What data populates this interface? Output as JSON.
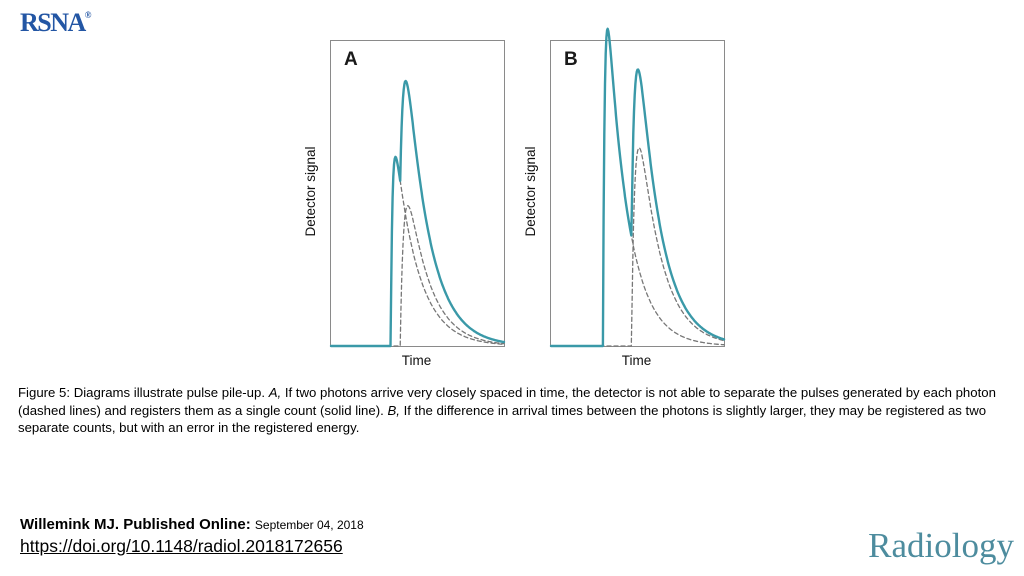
{
  "header": {
    "rsna_logo": "RSNA",
    "rsna_registered": "®"
  },
  "colors": {
    "signal_teal": "#3a99a8",
    "dashed_gray": "#777777",
    "rsna_blue": "#2356a4",
    "journal_teal": "#4d8c9e",
    "box_border": "#8a8a8a"
  },
  "chart_data": [
    {
      "type": "line",
      "panel_label": "A",
      "xlabel": "Time",
      "ylabel": "Detector signal",
      "x_range": [
        0,
        100
      ],
      "y_range": [
        0,
        110
      ],
      "grid": false,
      "legend": "none",
      "note": "Two photons arriving very closely in time; pulses merge into a single registered count",
      "series": [
        {
          "name": "photon-pulse-1",
          "style": "dashed",
          "color": "#777777",
          "pulse": {
            "t0": 34.5,
            "rise": 1.0,
            "decay": 13,
            "amplitude": 62
          }
        },
        {
          "name": "photon-pulse-2",
          "style": "dashed",
          "color": "#777777",
          "pulse": {
            "t0": 40.0,
            "rise": 2.0,
            "decay": 13,
            "amplitude": 46
          }
        },
        {
          "name": "registered-signal",
          "style": "solid",
          "color": "#3a99a8",
          "sum_of": [
            0,
            1
          ]
        }
      ]
    },
    {
      "type": "line",
      "panel_label": "B",
      "xlabel": "Time",
      "ylabel": "Detector signal",
      "x_range": [
        0,
        100
      ],
      "y_range": [
        0,
        110
      ],
      "grid": false,
      "legend": "none",
      "note": "Slightly larger arrival-time difference; two counts registered with an energy error",
      "series": [
        {
          "name": "photon-pulse-1",
          "style": "dashed",
          "color": "#777777",
          "pulse": {
            "t0": 30.0,
            "rise": 1.0,
            "decay": 12,
            "amplitude": 104
          }
        },
        {
          "name": "photon-pulse-2",
          "style": "dashed",
          "color": "#777777",
          "pulse": {
            "t0": 46.5,
            "rise": 2.0,
            "decay": 13,
            "amplitude": 65
          }
        },
        {
          "name": "registered-signal",
          "style": "solid",
          "color": "#3a99a8",
          "sum_of": [
            0,
            1
          ]
        }
      ]
    }
  ],
  "caption": {
    "part1": "Figure 5: Diagrams illustrate pulse pile-up. ",
    "a": "A,",
    "part2": " If two photons arrive very closely spaced in time, the detector is not able to separate the pulses generated by each photon (dashed lines) and registers them as a single count (solid line). ",
    "b": "B,",
    "part3": " If the difference in arrival times between the photons is slightly larger, they may be registered as two separate counts, but with an error in the registered energy."
  },
  "footer": {
    "author_line": "Willemink MJ. Published Online:",
    "date": "September 04, 2018",
    "doi": "https://doi.org/10.1148/radiol.2018172656",
    "journal": "Radiology"
  }
}
